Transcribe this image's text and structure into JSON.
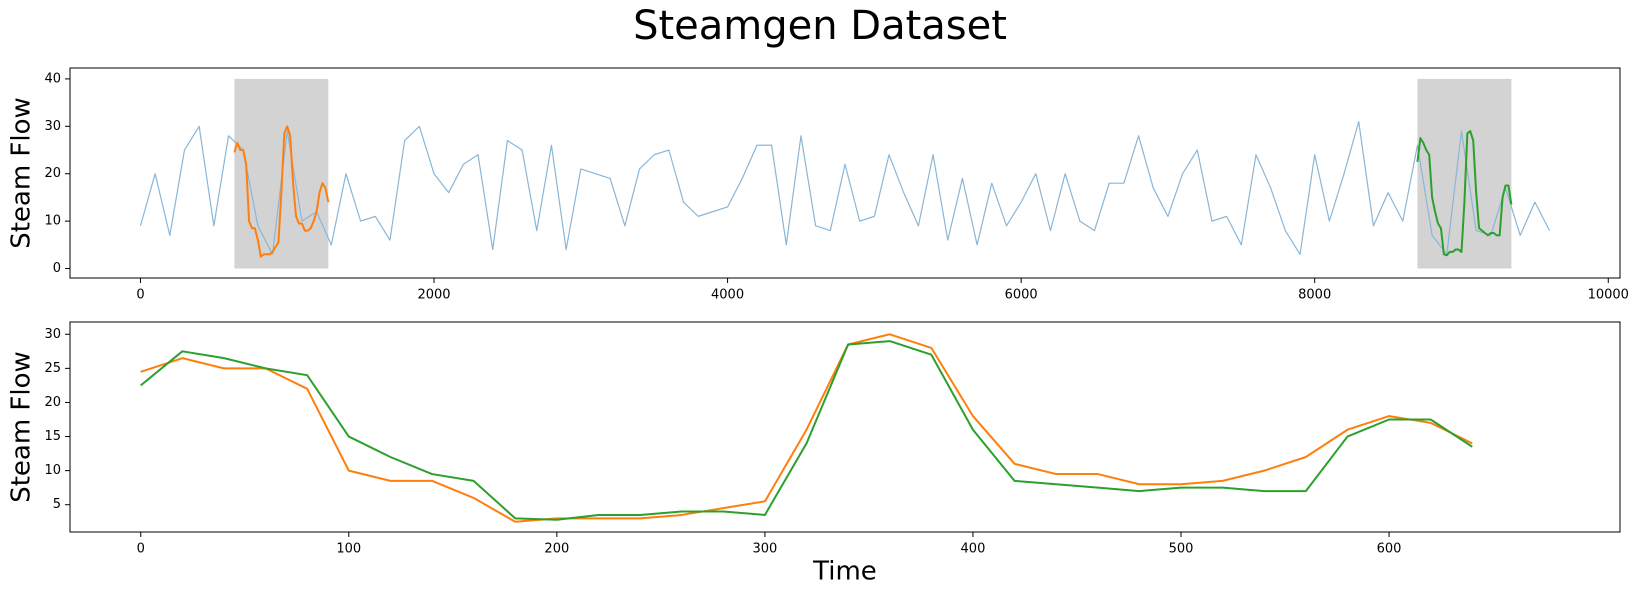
{
  "title": "Steamgen Dataset",
  "chart_data": [
    {
      "type": "line",
      "ylabel": "Steam Flow",
      "xlim": [
        -480,
        10080
      ],
      "ylim": [
        -2,
        42.3
      ],
      "xticks": [
        0,
        2000,
        4000,
        6000,
        8000,
        10000
      ],
      "yticks": [
        0,
        10,
        20,
        30,
        40
      ],
      "highlights": [
        {
          "x0": 640,
          "x1": 1280,
          "y0": 0,
          "y1": 40,
          "color": "#d3d3d3"
        },
        {
          "x0": 8700,
          "x1": 9340,
          "y0": 0,
          "y1": 40,
          "color": "#d3d3d3"
        }
      ],
      "series": [
        {
          "color": "#8ab6d6",
          "width": 1.2,
          "x": [
            0,
            100,
            200,
            300,
            400,
            500,
            600,
            700,
            800,
            900,
            1000,
            1100,
            1200,
            1300,
            1400,
            1500,
            1600,
            1700,
            1800,
            1900,
            2000,
            2100,
            2200,
            2300,
            2400,
            2500,
            2600,
            2700,
            2800,
            2900,
            3000,
            3100,
            3200,
            3300,
            3400,
            3500,
            3600,
            3700,
            3800,
            3900,
            4000,
            4100,
            4200,
            4300,
            4400,
            4500,
            4600,
            4700,
            4800,
            4900,
            5000,
            5100,
            5200,
            5300,
            5400,
            5500,
            5600,
            5700,
            5800,
            5900,
            6000,
            6100,
            6200,
            6300,
            6400,
            6500,
            6600,
            6700,
            6800,
            6900,
            7000,
            7100,
            7200,
            7300,
            7400,
            7500,
            7600,
            7700,
            7800,
            7900,
            8000,
            8100,
            8200,
            8300,
            8400,
            8500,
            8600,
            8700,
            8800,
            8900,
            9000,
            9100,
            9200,
            9300,
            9400,
            9500,
            9600
          ],
          "values": [
            9,
            20,
            7,
            25,
            30,
            9,
            28,
            25,
            9,
            3,
            29,
            10,
            12,
            5,
            20,
            10,
            11,
            6,
            27,
            30,
            20,
            16,
            22,
            24,
            4,
            27,
            25,
            8,
            26,
            4,
            21,
            20,
            19,
            9,
            21,
            24,
            25,
            14,
            11,
            12,
            13,
            19,
            26,
            26,
            5,
            28,
            9,
            8,
            22,
            10,
            11,
            24,
            16,
            9,
            24,
            6,
            19,
            5,
            18,
            9,
            14,
            20,
            8,
            20,
            10,
            8,
            18,
            18,
            28,
            17,
            11,
            20,
            25,
            10,
            11,
            5,
            24,
            17,
            8,
            3,
            24,
            10,
            20,
            31,
            9,
            16,
            10,
            26,
            7,
            3,
            29,
            8,
            7,
            17,
            7,
            14,
            8
          ]
        },
        {
          "color": "#ff7f0e",
          "width": 2,
          "x": [
            640,
            660,
            680,
            700,
            720,
            740,
            760,
            780,
            800,
            820,
            840,
            860,
            880,
            900,
            920,
            940,
            960,
            980,
            1000,
            1020,
            1040,
            1060,
            1080,
            1100,
            1120,
            1140,
            1160,
            1180,
            1200,
            1220,
            1240,
            1260,
            1280
          ],
          "values": [
            24.5,
            26.5,
            25,
            25,
            22,
            10,
            8.5,
            8.5,
            6,
            2.5,
            3,
            3,
            3,
            3.5,
            4.5,
            5.5,
            16,
            28.5,
            30,
            28,
            18,
            11,
            9.5,
            9.5,
            8,
            8,
            8.5,
            10,
            12,
            16,
            18,
            17,
            14
          ]
        },
        {
          "color": "#2ca02c",
          "width": 2,
          "x": [
            8700,
            8720,
            8740,
            8760,
            8780,
            8800,
            8820,
            8840,
            8860,
            8880,
            8900,
            8920,
            8940,
            8960,
            8980,
            9000,
            9020,
            9040,
            9060,
            9080,
            9100,
            9120,
            9140,
            9160,
            9180,
            9200,
            9220,
            9240,
            9260,
            9280,
            9300,
            9320,
            9340
          ],
          "values": [
            22.5,
            27.5,
            26.5,
            25,
            24,
            15,
            12,
            9.5,
            8.5,
            3,
            2.8,
            3.5,
            3.5,
            4,
            4,
            3.5,
            14,
            28.5,
            29,
            27,
            16,
            8.5,
            8,
            7.5,
            7,
            7.5,
            7.5,
            7,
            7,
            15,
            17.5,
            17.5,
            13.5
          ]
        }
      ]
    },
    {
      "type": "line",
      "ylabel": "Steam Flow",
      "xlabel": "Time",
      "xlim": [
        -34,
        711
      ],
      "ylim": [
        1,
        31.8
      ],
      "xticks": [
        0,
        100,
        200,
        300,
        400,
        500,
        600
      ],
      "yticks": [
        5,
        10,
        15,
        20,
        25,
        30
      ],
      "series": [
        {
          "color": "#ff7f0e",
          "width": 2,
          "x": [
            0,
            20,
            40,
            60,
            80,
            100,
            120,
            140,
            160,
            180,
            200,
            220,
            240,
            260,
            280,
            300,
            320,
            340,
            360,
            380,
            400,
            420,
            440,
            460,
            480,
            500,
            520,
            540,
            560,
            580,
            600,
            620,
            640
          ],
          "values": [
            24.5,
            26.5,
            25,
            25,
            22,
            10,
            8.5,
            8.5,
            6,
            2.5,
            3,
            3,
            3,
            3.5,
            4.5,
            5.5,
            16,
            28.5,
            30,
            28,
            18,
            11,
            9.5,
            9.5,
            8,
            8,
            8.5,
            10,
            12,
            16,
            18,
            17,
            14
          ]
        },
        {
          "color": "#2ca02c",
          "width": 2,
          "x": [
            0,
            20,
            40,
            60,
            80,
            100,
            120,
            140,
            160,
            180,
            200,
            220,
            240,
            260,
            280,
            300,
            320,
            340,
            360,
            380,
            400,
            420,
            440,
            460,
            480,
            500,
            520,
            540,
            560,
            580,
            600,
            620,
            640
          ],
          "values": [
            22.5,
            27.5,
            26.5,
            25,
            24,
            15,
            12,
            9.5,
            8.5,
            3,
            2.8,
            3.5,
            3.5,
            4,
            4,
            3.5,
            14,
            28.5,
            29,
            27,
            16,
            8.5,
            8,
            7.5,
            7,
            7.5,
            7.5,
            7,
            7,
            15,
            17.5,
            17.5,
            13.5
          ]
        }
      ]
    }
  ]
}
